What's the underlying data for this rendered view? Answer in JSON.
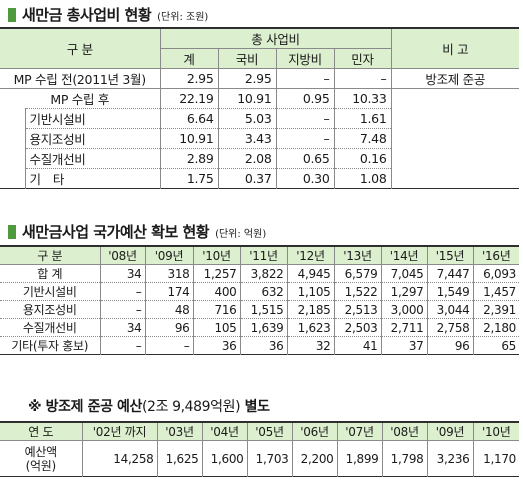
{
  "section1": {
    "title": "새만금 총사업비 현황",
    "unit": "(단위: 조원)",
    "header": {
      "category": "구 분",
      "group": "총 사업비",
      "cols": [
        "계",
        "국비",
        "지방비",
        "민자"
      ],
      "remarks": "비 고"
    },
    "rows": [
      {
        "label": "MP 수립 전(2011년 3월)",
        "values": [
          "2.95",
          "2.95",
          "–",
          "–"
        ],
        "remark": "방조제 준공"
      },
      {
        "label": "MP 수립 후",
        "values": [
          "22.19",
          "10.91",
          "0.95",
          "10.33"
        ],
        "remark": ""
      },
      {
        "label": "기반시설비",
        "values": [
          "6.64",
          "5.03",
          "–",
          "1.61"
        ],
        "remark": ""
      },
      {
        "label": "용지조성비",
        "values": [
          "10.91",
          "3.43",
          "–",
          "7.48"
        ],
        "remark": ""
      },
      {
        "label": "수질개선비",
        "values": [
          "2.89",
          "2.08",
          "0.65",
          "0.16"
        ],
        "remark": ""
      },
      {
        "label": "기　타",
        "values": [
          "1.75",
          "0.37",
          "0.30",
          "1.08"
        ],
        "remark": ""
      }
    ]
  },
  "section2": {
    "title": "새만금사업 국가예산 확보 현황",
    "unit": "(단위: 억원)",
    "header": [
      "구 분",
      "'08년",
      "'09년",
      "'10년",
      "'11년",
      "'12년",
      "'13년",
      "'14년",
      "'15년",
      "'16년"
    ],
    "rows": [
      {
        "label": "합 계",
        "values": [
          "34",
          "318",
          "1,257",
          "3,822",
          "4,945",
          "6,579",
          "7,045",
          "7,447",
          "6,093"
        ]
      },
      {
        "label": "기반시설비",
        "values": [
          "–",
          "174",
          "400",
          "632",
          "1,105",
          "1,522",
          "1,297",
          "1,549",
          "1,457"
        ]
      },
      {
        "label": "용지조성비",
        "values": [
          "–",
          "48",
          "716",
          "1,515",
          "2,185",
          "2,513",
          "3,000",
          "3,044",
          "2,391"
        ]
      },
      {
        "label": "수질개선비",
        "values": [
          "34",
          "96",
          "105",
          "1,639",
          "1,623",
          "2,503",
          "2,711",
          "2,758",
          "2,180"
        ]
      },
      {
        "label": "기타(투자 홍보)",
        "values": [
          "–",
          "–",
          "36",
          "36",
          "32",
          "41",
          "37",
          "96",
          "65"
        ]
      }
    ]
  },
  "section3": {
    "title_prefix": "※ 방조제 준공 예산",
    "title_amount": "(2조 9,489억원)",
    "title_suffix": " 별도",
    "header": [
      "연 도",
      "'02년 까지",
      "'03년",
      "'04년",
      "'05년",
      "'06년",
      "'07년",
      "'08년",
      "'09년",
      "'10년"
    ],
    "row_label_line1": "예산액",
    "row_label_line2": "(억원)",
    "values": [
      "14,258",
      "1,625",
      "1,600",
      "1,703",
      "2,200",
      "1,899",
      "1,798",
      "3,236",
      "1,170"
    ]
  },
  "colors": {
    "accent_square": "#4f9a3c",
    "header_fill": "#dcefce"
  }
}
